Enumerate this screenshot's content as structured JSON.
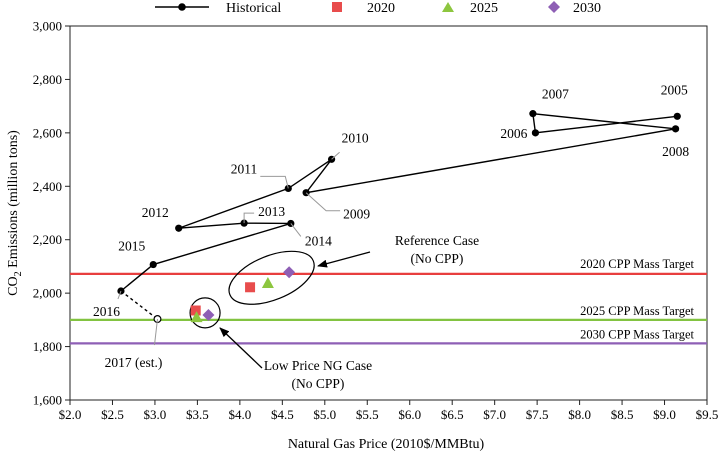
{
  "chart_data": {
    "type": "scatter",
    "title": "",
    "xlabel": "Natural Gas Price (2010$/MMBtu)",
    "ylabel": "CO2 Emissions (million tons)",
    "ylabel_main": "CO",
    "ylabel_sub": "2",
    "ylabel_rest": " Emissions (million tons)",
    "xlim": [
      2.0,
      9.5
    ],
    "ylim": [
      1600,
      3000
    ],
    "x_ticks": [
      2.0,
      2.5,
      3.0,
      3.5,
      4.0,
      4.5,
      5.0,
      5.5,
      6.0,
      6.5,
      7.0,
      7.5,
      8.0,
      8.5,
      9.0,
      9.5
    ],
    "x_tick_labels": [
      "$2.0",
      "$2.5",
      "$3.0",
      "$3.5",
      "$4.0",
      "$4.5",
      "$5.0",
      "$5.5",
      "$6.0",
      "$6.5",
      "$7.0",
      "$7.5",
      "$8.0",
      "$8.5",
      "$9.0",
      "$9.5"
    ],
    "y_ticks": [
      1600,
      1800,
      2000,
      2200,
      2400,
      2600,
      2800,
      3000
    ],
    "y_tick_labels": [
      "1,600",
      "1,800",
      "2,000",
      "2,200",
      "2,400",
      "2,600",
      "2,800",
      "3,000"
    ],
    "grid": false,
    "legend_position": "top",
    "legend": [
      {
        "name": "Historical",
        "marker": "line-circle",
        "color": "#000000"
      },
      {
        "name": "2020",
        "marker": "square",
        "color": "#e84c4c"
      },
      {
        "name": "2025",
        "marker": "triangle",
        "color": "#8dc63f"
      },
      {
        "name": "2030",
        "marker": "diamond",
        "color": "#8e5fb5"
      }
    ],
    "historical": [
      {
        "year": "2005",
        "x": 9.15,
        "y": 2662
      },
      {
        "year": "2006",
        "x": 7.48,
        "y": 2600
      },
      {
        "year": "2007",
        "x": 7.45,
        "y": 2672
      },
      {
        "year": "2008",
        "x": 9.13,
        "y": 2615
      },
      {
        "year": "2009",
        "x": 4.78,
        "y": 2376
      },
      {
        "year": "2010",
        "x": 5.08,
        "y": 2501
      },
      {
        "year": "2011",
        "x": 4.57,
        "y": 2392
      },
      {
        "year": "2012",
        "x": 3.28,
        "y": 2243
      },
      {
        "year": "2013",
        "x": 4.05,
        "y": 2262
      },
      {
        "year": "2014",
        "x": 4.6,
        "y": 2261
      },
      {
        "year": "2015",
        "x": 2.98,
        "y": 2107
      },
      {
        "year": "2016",
        "x": 2.6,
        "y": 2008
      }
    ],
    "estimate": {
      "year": "2017 (est.)",
      "x": 3.03,
      "y": 1903
    },
    "series": [
      {
        "name": "2020",
        "color": "#e84c4c",
        "marker": "square",
        "points": [
          {
            "case": "Reference Case",
            "x": 4.12,
            "y": 2022
          },
          {
            "case": "Low Price NG Case",
            "x": 3.48,
            "y": 1935
          }
        ]
      },
      {
        "name": "2025",
        "color": "#8dc63f",
        "marker": "triangle",
        "points": [
          {
            "case": "Reference Case",
            "x": 4.33,
            "y": 2038
          },
          {
            "case": "Low Price NG Case",
            "x": 3.49,
            "y": 1910
          }
        ]
      },
      {
        "name": "2030",
        "color": "#8e5fb5",
        "marker": "diamond",
        "points": [
          {
            "case": "Reference Case",
            "x": 4.58,
            "y": 2078
          },
          {
            "case": "Low Price NG Case",
            "x": 3.63,
            "y": 1918
          }
        ]
      }
    ],
    "reference_lines": [
      {
        "label": "2020 CPP Mass Target",
        "y": 2072,
        "color": "#e83e3e"
      },
      {
        "label": "2025 CPP Mass Target",
        "y": 1900,
        "color": "#82c341"
      },
      {
        "label": "2030 CPP Mass Target",
        "y": 1812,
        "color": "#8e5fb5"
      }
    ],
    "annotations": [
      {
        "text_lines": [
          "Reference Case",
          "(No CPP)"
        ]
      },
      {
        "text_lines": [
          "Low Price NG Case",
          "(No CPP)"
        ]
      }
    ]
  }
}
